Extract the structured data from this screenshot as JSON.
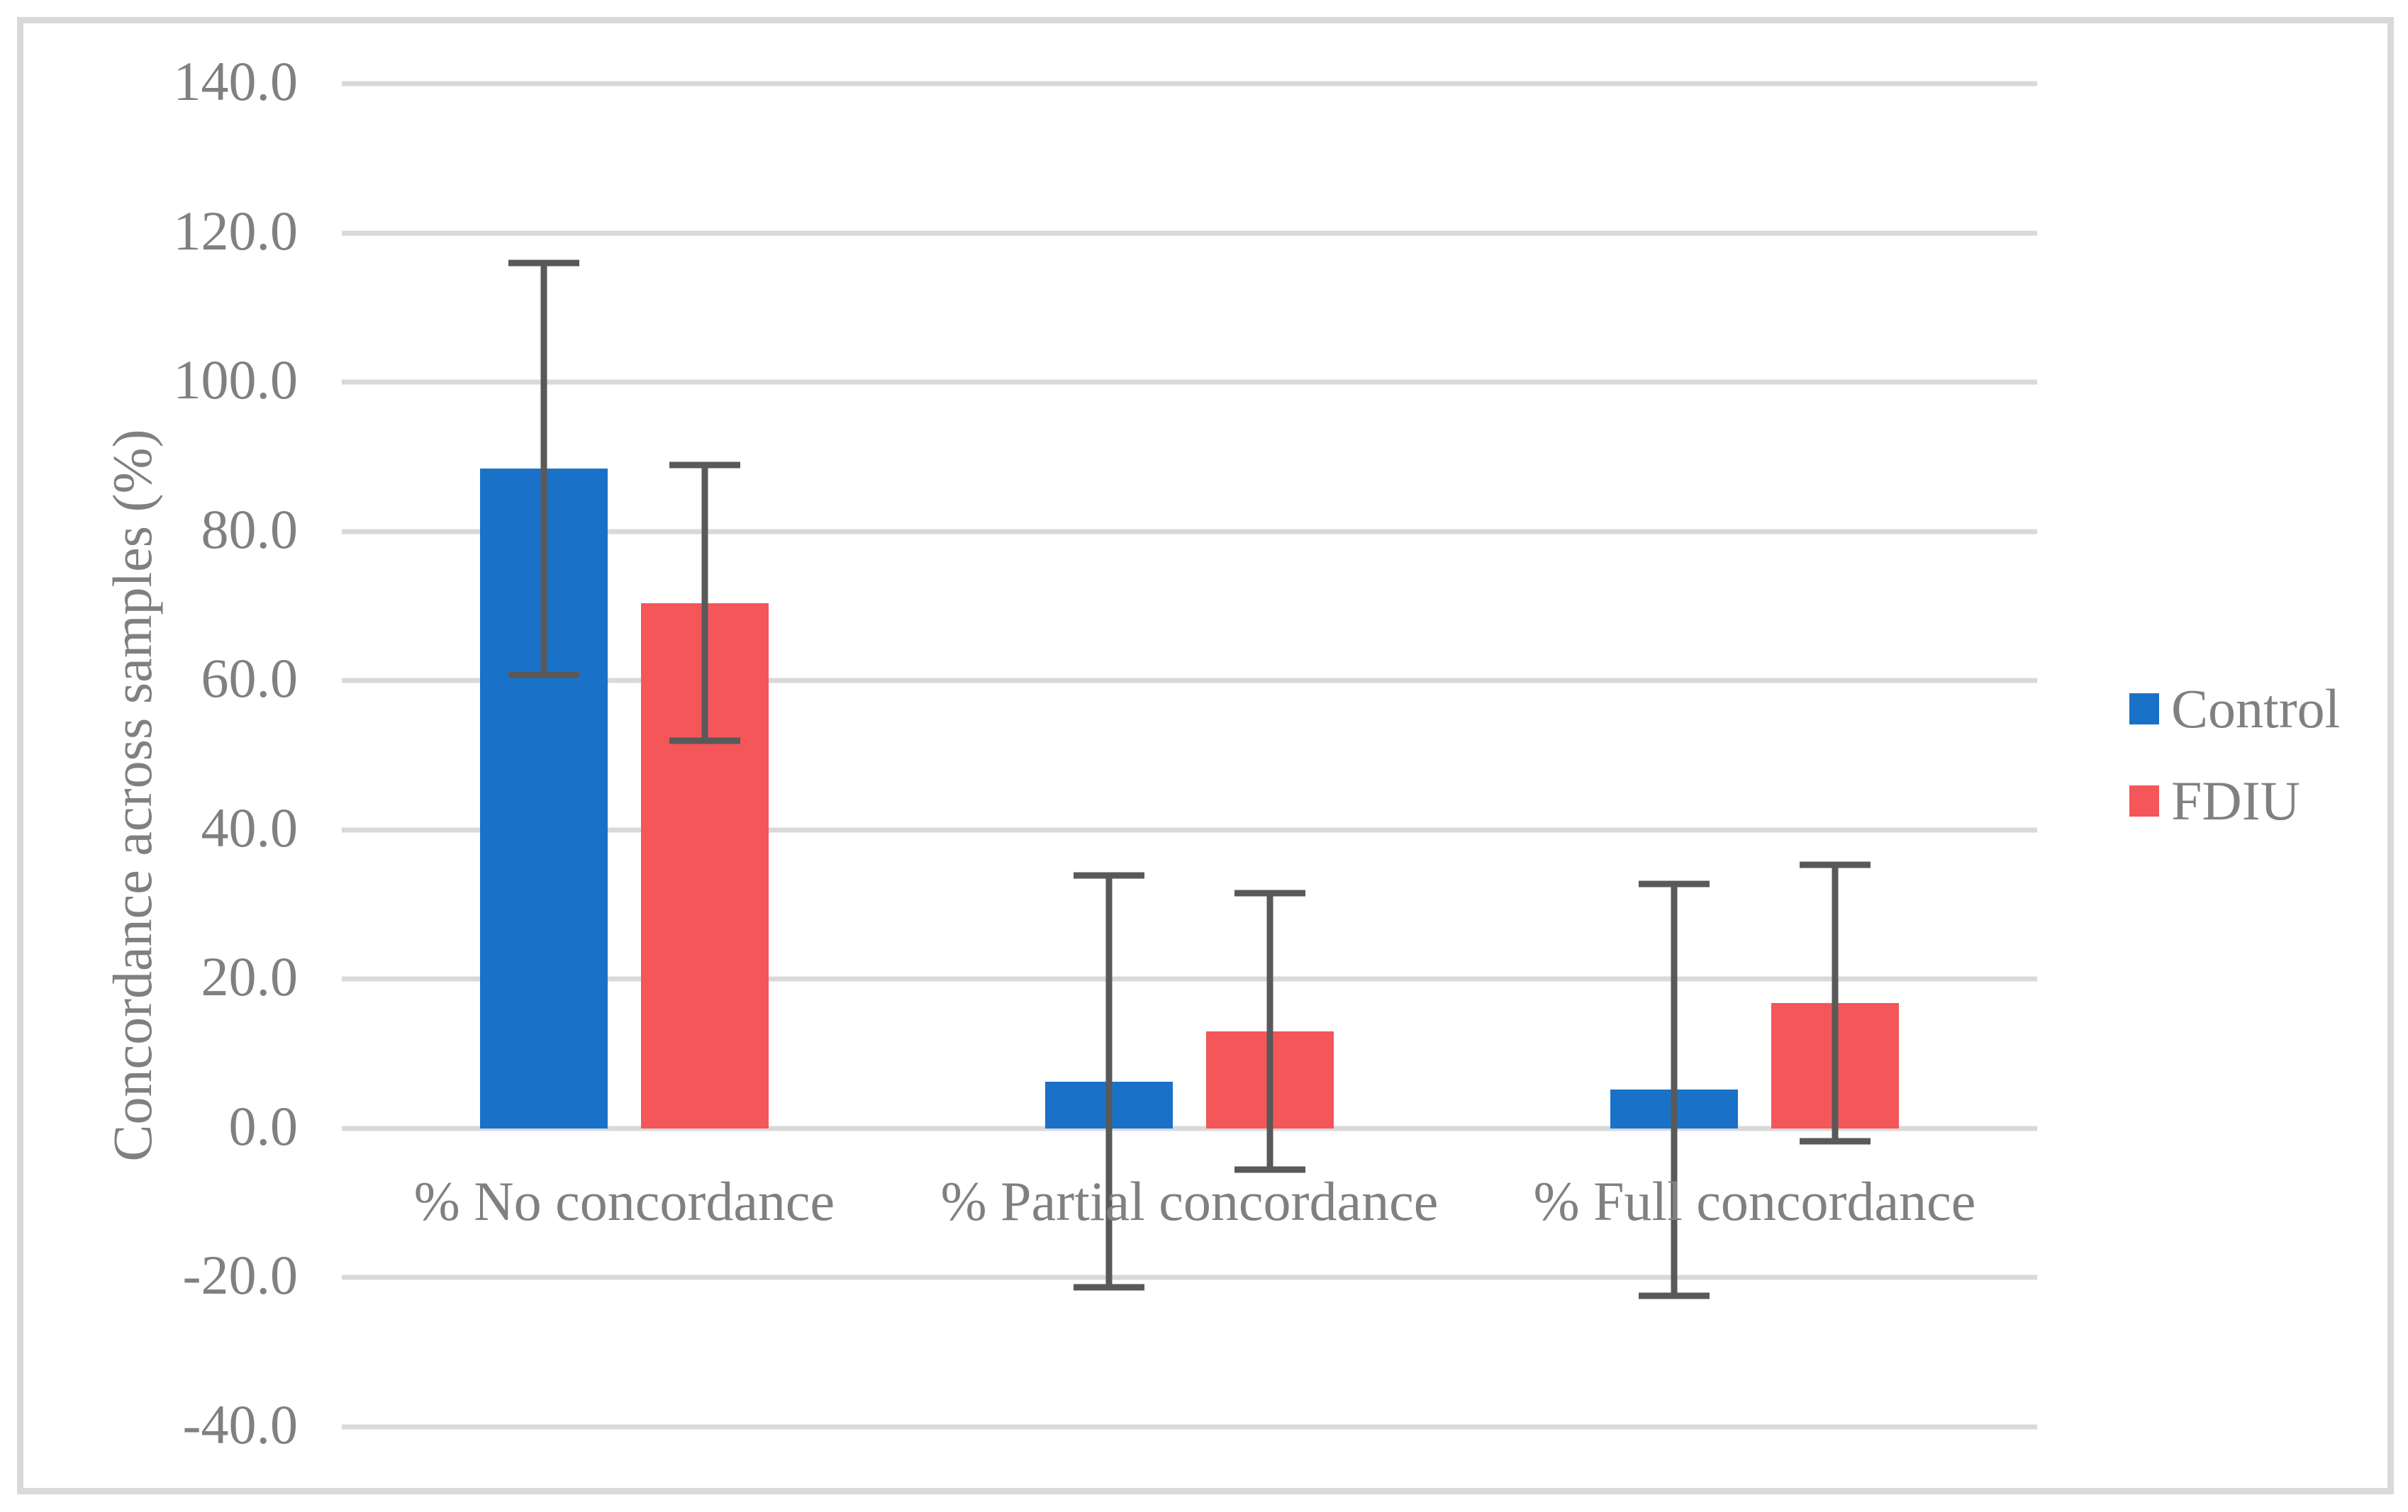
{
  "figure": {
    "background": "#FFFFFF",
    "border_color": "#D9D9D9"
  },
  "chart_data": {
    "type": "bar",
    "title": "",
    "xlabel": "",
    "ylabel": "Concordance across samples (%)",
    "categories": [
      "% No concordance",
      "% Partial concordance",
      "% Full concordance"
    ],
    "series": [
      {
        "name": "Control",
        "color": "#1A72C8",
        "values": [
          88.4,
          6.3,
          5.2
        ],
        "error_bars": [
          27.6,
          27.6,
          27.6
        ]
      },
      {
        "name": "FDIU",
        "color": "#F45659",
        "values": [
          70.4,
          13.0,
          16.8
        ],
        "error_bars": [
          18.5,
          18.5,
          18.5
        ]
      }
    ],
    "ylim": [
      -40,
      140
    ],
    "ytick_step": 20,
    "ytick_labels": [
      "140.0",
      "120.0",
      "100.0",
      "80.0",
      "60.0",
      "40.0",
      "20.0",
      "0.0",
      "-20.0",
      "-40.0"
    ],
    "grid": "horizontal",
    "gridline_color": "#D9D9D9",
    "error_bar_color": "#595959",
    "text_color": "#808080",
    "legend_position": "right"
  }
}
